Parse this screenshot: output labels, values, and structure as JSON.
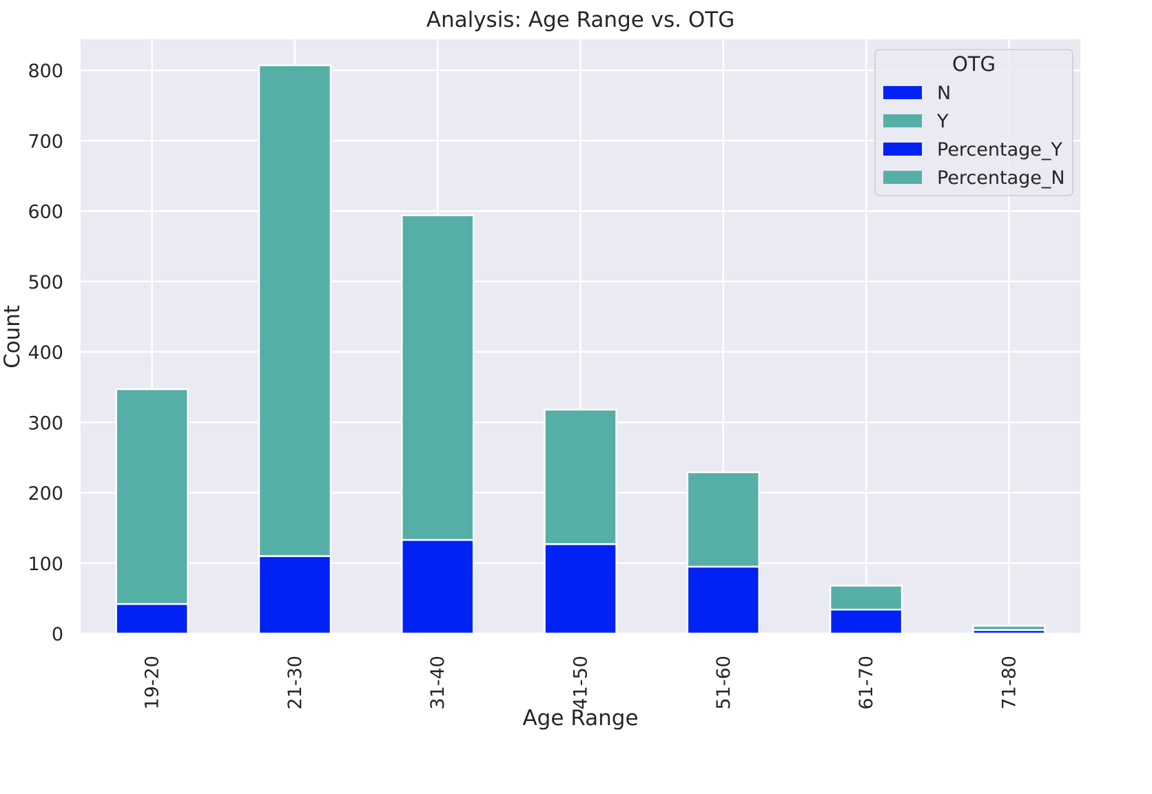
{
  "chart_data": {
    "type": "bar",
    "stacked": true,
    "title": "Analysis: Age Range vs. OTG",
    "xlabel": "Age Range",
    "ylabel": "Count",
    "ylim": [
      0,
      845
    ],
    "yticks": [
      "0",
      "100",
      "200",
      "300",
      "400",
      "500",
      "600",
      "700",
      "800"
    ],
    "grid": true,
    "categories": [
      "19-20",
      "21-30",
      "31-40",
      "41-50",
      "51-60",
      "61-70",
      "71-80"
    ],
    "series": [
      {
        "name": "N",
        "values": [
          42,
          110,
          133,
          127,
          95,
          34,
          5
        ],
        "color": "#0022f5"
      },
      {
        "name": "Y",
        "values": [
          305,
          697,
          461,
          191,
          134,
          34,
          6
        ],
        "color": "#56afa7"
      },
      {
        "name": "Percentage_Y",
        "values": [
          0,
          0,
          0,
          0,
          0,
          0,
          0
        ],
        "color": "#0022f5"
      },
      {
        "name": "Percentage_N",
        "values": [
          0,
          0,
          0,
          0,
          0,
          0,
          0
        ],
        "color": "#56afa7"
      }
    ],
    "legend": {
      "title": "OTG",
      "placement": "top-right",
      "entries": [
        "N",
        "Y",
        "Percentage_Y",
        "Percentage_N"
      ]
    },
    "colors": {
      "plot_background": "#eaeaf2",
      "grid": "#ffffff",
      "bar_edge": "#ffffff"
    }
  }
}
